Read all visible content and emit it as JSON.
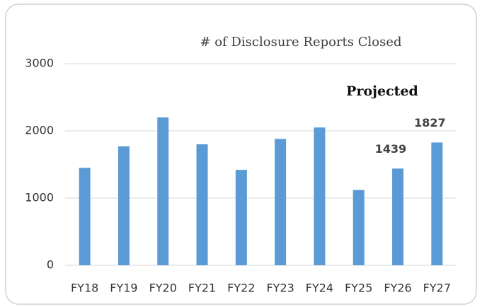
{
  "chart_data": {
    "type": "bar",
    "title": "# of Disclosure Reports Closed",
    "categories": [
      "FY18",
      "FY19",
      "FY20",
      "FY21",
      "FY22",
      "FY23",
      "FY24",
      "FY25",
      "FY26",
      "FY27"
    ],
    "values": [
      1450,
      1770,
      2200,
      1800,
      1420,
      1880,
      2050,
      1120,
      1439,
      1827
    ],
    "value_labels": [
      null,
      null,
      null,
      null,
      null,
      null,
      null,
      null,
      "1439",
      "1827"
    ],
    "annotation": "Projected",
    "color": "#5b9bd5",
    "ylim": [
      0,
      3000
    ],
    "yticks": [
      0,
      1000,
      2000,
      3000
    ],
    "grid": true
  }
}
